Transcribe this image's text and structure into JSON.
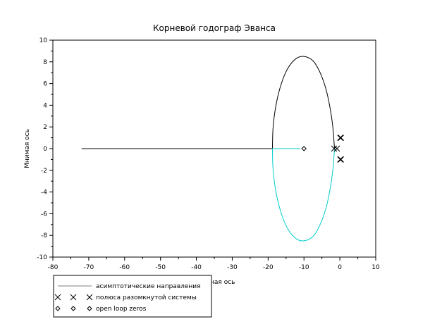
{
  "chart_data": {
    "type": "line",
    "title": "Корневой годограф Эванса",
    "xlabel": "Реальная ось",
    "ylabel": "Мнимая ось",
    "xlim": [
      -80,
      10
    ],
    "ylim": [
      -10,
      10
    ],
    "xticks": [
      -80,
      -70,
      -60,
      -50,
      -40,
      -30,
      -20,
      -10,
      0,
      10
    ],
    "yticks": [
      -10,
      -8,
      -6,
      -4,
      -2,
      0,
      2,
      4,
      6,
      8,
      10
    ],
    "grid": false,
    "legend": {
      "placement": "bottom-left",
      "entries": [
        {
          "label": "асимптотические направления",
          "marker": "line"
        },
        {
          "label": "полюса разомкнутой системы",
          "marker": "x"
        },
        {
          "label": "open loop zeros",
          "marker": "diamond"
        }
      ]
    },
    "series": [
      {
        "color": "#000000",
        "points": [
          [
            -72,
            0
          ],
          [
            -18.8,
            0
          ],
          [
            -18.6,
            2.0
          ],
          [
            -17.8,
            4.0
          ],
          [
            -16.4,
            5.9
          ],
          [
            -14.5,
            7.4
          ],
          [
            -12.2,
            8.3
          ],
          [
            -10,
            8.5
          ],
          [
            -7.5,
            8.1
          ],
          [
            -5.5,
            7.0
          ],
          [
            -3.8,
            5.4
          ],
          [
            -2.6,
            3.5
          ],
          [
            -1.9,
            1.8
          ],
          [
            -1.6,
            0.5
          ],
          [
            -1.5,
            0
          ]
        ]
      },
      {
        "color": "#00cccc",
        "points": [
          [
            -18.8,
            0
          ],
          [
            -18.6,
            -2.0
          ],
          [
            -17.8,
            -4.0
          ],
          [
            -16.4,
            -5.9
          ],
          [
            -14.5,
            -7.4
          ],
          [
            -12.2,
            -8.3
          ],
          [
            -10,
            -8.5
          ],
          [
            -7.5,
            -8.1
          ],
          [
            -5.5,
            -7.0
          ],
          [
            -3.8,
            -5.4
          ],
          [
            -2.6,
            -3.5
          ],
          [
            -1.9,
            -1.8
          ],
          [
            -1.6,
            -0.5
          ],
          [
            -1.5,
            0
          ]
        ]
      },
      {
        "color": "#00cccc",
        "points": [
          [
            -18.8,
            0
          ],
          [
            -11,
            0
          ]
        ]
      }
    ],
    "poles": [
      [
        -1.6,
        0
      ],
      [
        -0.8,
        0
      ],
      [
        0.1,
        1.0
      ],
      [
        0.3,
        1.0
      ],
      [
        0.1,
        -1.0
      ],
      [
        0.3,
        -1.0
      ]
    ],
    "zeros": [
      [
        -10,
        0
      ]
    ]
  }
}
